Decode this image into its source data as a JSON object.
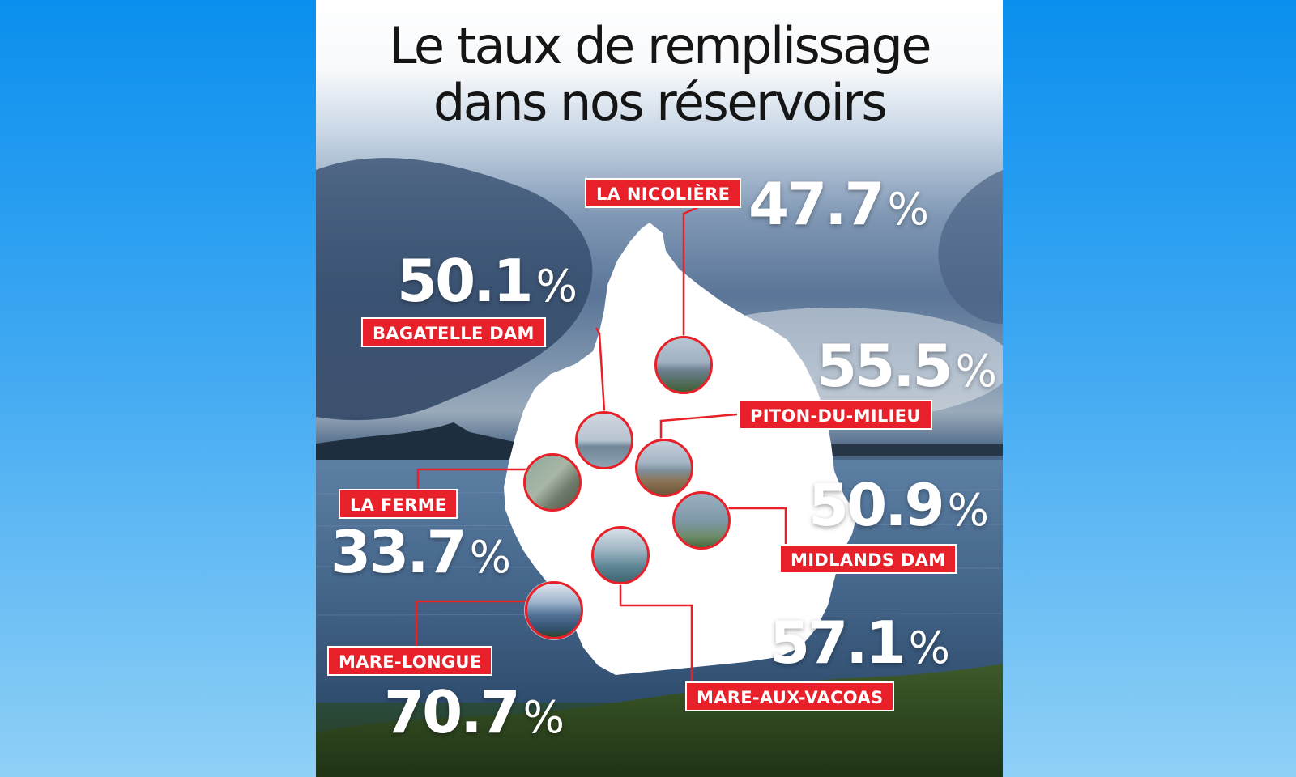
{
  "title": {
    "line1": "Le taux de remplissage",
    "line2": "dans nos réservoirs"
  },
  "reservoirs": [
    {
      "name": "LA NICOLIÈRE",
      "value": "47.7",
      "unit": "%"
    },
    {
      "name": "BAGATELLE DAM",
      "value": "50.1",
      "unit": "%"
    },
    {
      "name": "PITON-DU-MILIEU",
      "value": "55.5",
      "unit": "%"
    },
    {
      "name": "LA FERME",
      "value": "33.7",
      "unit": "%"
    },
    {
      "name": "MIDLANDS DAM",
      "value": "50.9",
      "unit": "%"
    },
    {
      "name": "MARE-LONGUE",
      "value": "70.7",
      "unit": "%"
    },
    {
      "name": "MARE-AUX-VACOAS",
      "value": "57.1",
      "unit": "%"
    }
  ],
  "colors": {
    "label_background": "#e8202a",
    "label_text": "#ffffff",
    "percent_text": "#ffffff",
    "title_text": "#151515",
    "island_fill": "#ffffff",
    "connector_line": "#e8202a"
  }
}
